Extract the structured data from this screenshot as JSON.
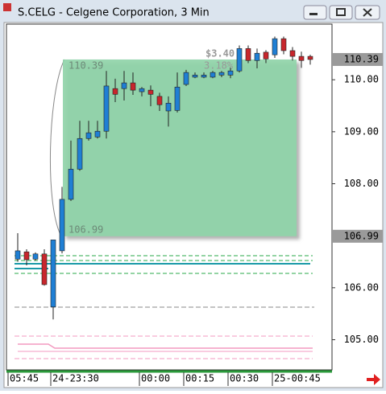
{
  "chart_data": {
    "type": "candlestick",
    "title": "S.CELG - Celgene Corporation, 3 Min",
    "categories": [
      "05:45",
      null,
      null,
      null,
      "24-23:30",
      null,
      null,
      null,
      null,
      null,
      null,
      null,
      null,
      null,
      "00:00",
      null,
      null,
      null,
      null,
      "00:15",
      null,
      null,
      null,
      null,
      "00:30",
      null,
      null,
      null,
      null,
      "25-00:45",
      null,
      null,
      null,
      null
    ],
    "open": [
      106.55,
      106.69,
      106.55,
      106.65,
      105.63,
      106.71,
      107.7,
      108.28,
      108.87,
      108.9,
      109.01,
      109.83,
      109.83,
      109.94,
      109.77,
      109.8,
      109.68,
      109.4,
      109.41,
      109.91,
      110.05,
      110.05,
      110.05,
      110.09,
      110.09,
      110.17,
      110.6,
      110.37,
      110.53,
      110.48,
      110.79,
      110.56,
      110.45,
      110.45
    ],
    "high": [
      107.05,
      106.74,
      106.68,
      106.74,
      106.92,
      107.94,
      108.83,
      109.21,
      109.21,
      109.21,
      110.17,
      110.02,
      110.17,
      110.14,
      109.86,
      109.89,
      109.75,
      109.68,
      110.14,
      110.19,
      110.14,
      110.14,
      110.17,
      110.17,
      110.23,
      110.66,
      110.66,
      110.6,
      110.57,
      110.83,
      110.83,
      110.63,
      110.54,
      110.48
    ],
    "low": [
      106.5,
      106.43,
      106.52,
      106.04,
      105.39,
      106.66,
      107.67,
      108.25,
      108.83,
      108.87,
      108.87,
      109.57,
      109.6,
      109.71,
      109.68,
      109.49,
      109.4,
      109.1,
      109.37,
      109.88,
      110.03,
      110.03,
      110.03,
      110.05,
      110.03,
      110.14,
      110.32,
      110.22,
      110.32,
      110.42,
      110.49,
      110.37,
      110.23,
      110.29
    ],
    "close": [
      106.71,
      106.54,
      106.65,
      106.06,
      106.92,
      107.7,
      108.28,
      108.87,
      108.98,
      109.01,
      109.88,
      109.72,
      109.94,
      109.8,
      109.83,
      109.72,
      109.52,
      109.55,
      109.86,
      110.14,
      110.09,
      110.09,
      110.14,
      110.14,
      110.17,
      110.6,
      110.37,
      110.51,
      110.4,
      110.79,
      110.56,
      110.45,
      110.37,
      110.39
    ],
    "up_color": "#1f7fd4",
    "down_color": "#c8262c",
    "ylim": [
      104.42,
      111.07
    ],
    "yticks": [
      {
        "value": 110,
        "label": "110.00"
      },
      {
        "value": 109,
        "label": "109.00"
      },
      {
        "value": 108,
        "label": "108.00"
      },
      {
        "value": 106,
        "label": "106.00"
      },
      {
        "value": 105,
        "label": "105.00"
      }
    ],
    "price_tags": [
      {
        "value": 110.39,
        "label": "110.39"
      },
      {
        "value": 106.99,
        "label": "106.99"
      }
    ],
    "box": {
      "high": {
        "value": 110.39,
        "label": "110.39"
      },
      "low": {
        "value": 106.99,
        "label": "106.99"
      },
      "change": "$3.40",
      "percent": "3.18%"
    }
  }
}
